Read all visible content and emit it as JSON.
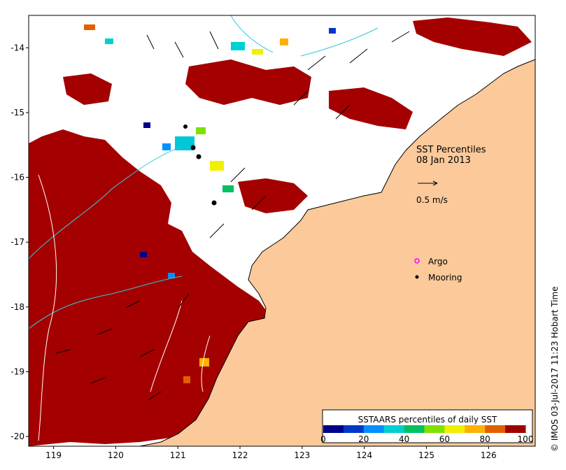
{
  "map": {
    "lat_ticks": [
      "-14",
      "-15",
      "-16",
      "-17",
      "-18",
      "-19",
      "-20"
    ],
    "lon_ticks": [
      "119",
      "120",
      "121",
      "122",
      "123",
      "124",
      "125",
      "126"
    ],
    "lat_range": [
      -20.15,
      -13.5
    ],
    "lon_range": [
      118.6,
      126.75
    ]
  },
  "annotations": {
    "title_line1": "SST Percentiles",
    "title_line2": "08 Jan 2013",
    "vector_scale_label": "0.5 m/s",
    "legend_argo": "Argo",
    "legend_mooring": "Mooring"
  },
  "colorbar": {
    "title": "SSTAARS percentiles of daily SST",
    "tick_labels": [
      "0",
      "20",
      "40",
      "60",
      "80",
      "100"
    ],
    "colors": [
      "#00008b",
      "#0038c8",
      "#0090ff",
      "#00d0d0",
      "#00c060",
      "#80e000",
      "#f0f000",
      "#ffb000",
      "#e06000",
      "#a00000"
    ]
  },
  "colors": {
    "land": "#fbc99a",
    "warm": "#a40000",
    "coast": "#000000",
    "contour_cyan": "#33c8d8",
    "argo_marker": "#ff00ff",
    "mooring_marker": "#000000"
  },
  "credit": "© IMOS 03-Jul-2017 11:23 Hobart Time"
}
